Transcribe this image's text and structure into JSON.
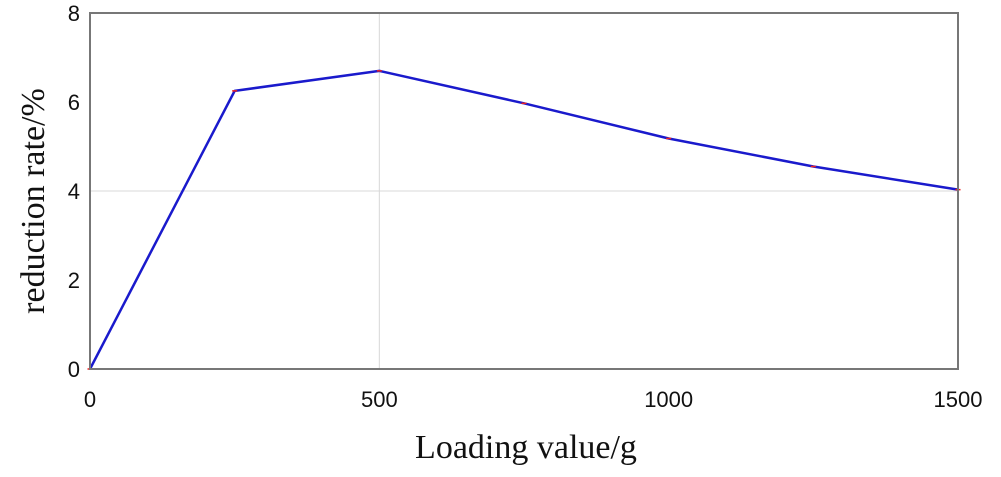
{
  "chart_data": {
    "type": "line",
    "title": "",
    "xlabel": "Loading value/g",
    "ylabel": "reduction rate/%",
    "xlim": [
      0,
      1500
    ],
    "ylim": [
      0,
      8
    ],
    "xticks": [
      0,
      500,
      1000,
      1500
    ],
    "yticks": [
      0,
      2,
      4,
      6,
      8
    ],
    "grid": {
      "x": [
        500
      ],
      "y": [
        4
      ]
    },
    "legend": "none",
    "series": [
      {
        "color": "#1a1acc",
        "marker_color": "#ee2222",
        "x": [
          0,
          250,
          500,
          750,
          1000,
          1250,
          1500
        ],
        "y": [
          0,
          6.25,
          6.7,
          5.97,
          5.18,
          4.55,
          4.03
        ]
      }
    ]
  }
}
